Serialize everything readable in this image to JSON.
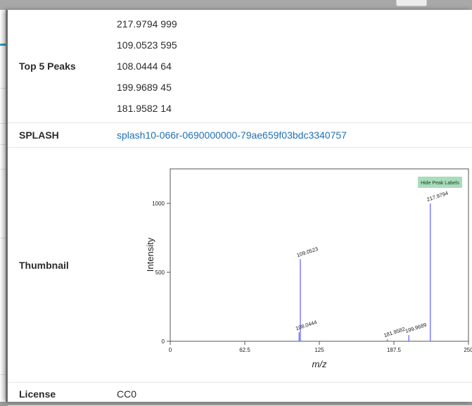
{
  "rows": {
    "top5": {
      "label": "Top 5 Peaks",
      "peaks": [
        "217.9794 999",
        "109.0523 595",
        "108.0444 64",
        "199.9689 45",
        "181.9582 14"
      ]
    },
    "splash": {
      "label": "SPLASH",
      "value": "splash10-066r-0690000000-79ae659f03bdc3340757"
    },
    "thumbnail": {
      "label": "Thumbnail"
    },
    "license": {
      "label": "License",
      "value": "CC0"
    }
  },
  "chart_data": {
    "type": "bar",
    "xlabel": "m/z",
    "ylabel": "Intensity",
    "xlim": [
      0,
      250
    ],
    "ylim": [
      0,
      1250
    ],
    "xticks": [
      "0",
      "62.5",
      "125",
      "187.5",
      "250"
    ],
    "yticks": [
      "0",
      "500",
      "1000"
    ],
    "peaks": [
      {
        "mz": 108.0444,
        "intensity": 64,
        "label": "108.0444"
      },
      {
        "mz": 109.0523,
        "intensity": 595,
        "label": "109.0523"
      },
      {
        "mz": 181.9582,
        "intensity": 14,
        "label": "181.9582"
      },
      {
        "mz": 199.9689,
        "intensity": 45,
        "label": "199.9689"
      },
      {
        "mz": 217.9794,
        "intensity": 999,
        "label": "217.9794"
      }
    ],
    "button_label": "Hide Peak Labels",
    "colors": {
      "peak": "#7b7bff",
      "button_bg": "#a8dcbb",
      "axis": "#555555"
    }
  }
}
